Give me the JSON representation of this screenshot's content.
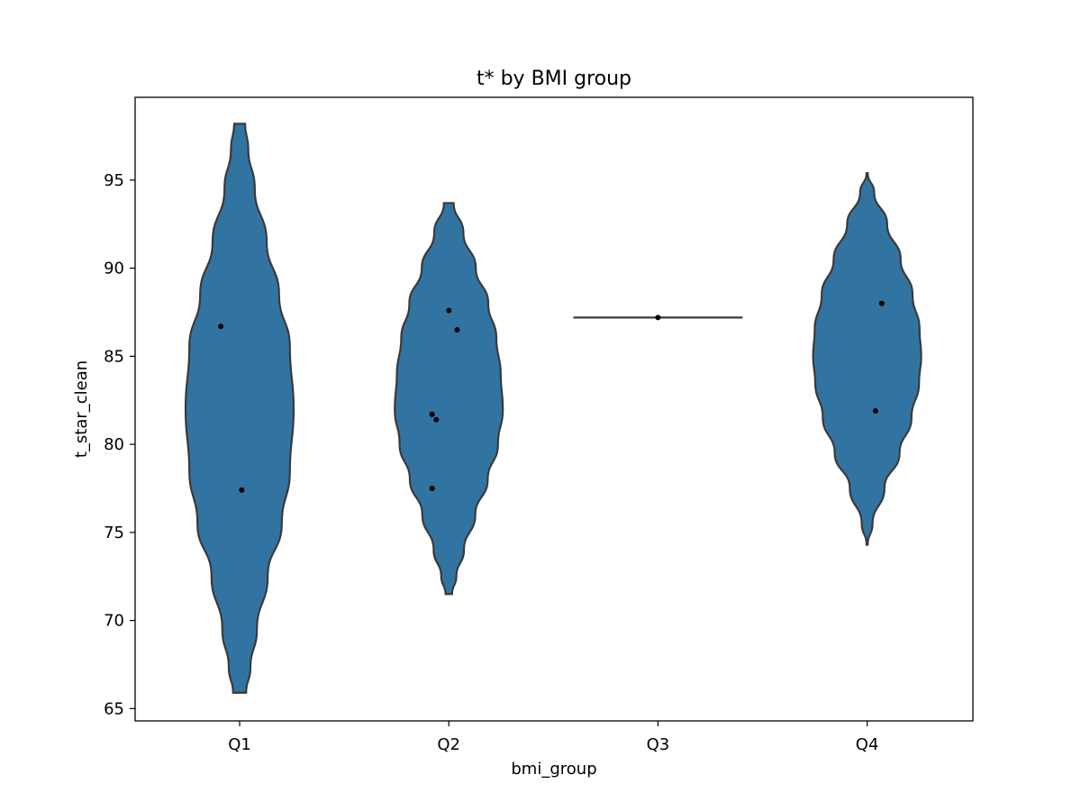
{
  "chart_data": {
    "type": "violin",
    "title": "t* by BMI group",
    "xlabel": "bmi_group",
    "ylabel": "t_star_clean",
    "categories": [
      "Q1",
      "Q2",
      "Q3",
      "Q4"
    ],
    "ylim": [
      64.3,
      99.7
    ],
    "yticks": [
      65,
      70,
      75,
      80,
      85,
      90,
      95
    ],
    "fill_color": "#3274a1",
    "edge_color": "#3a3a3a",
    "point_color": "#000000",
    "grid": false,
    "violins": [
      {
        "category": "Q1",
        "min": 65.9,
        "max": 98.2,
        "profile": [
          [
            65.9,
            0.12
          ],
          [
            67.3,
            0.2
          ],
          [
            69.5,
            0.32
          ],
          [
            72.5,
            0.52
          ],
          [
            75.5,
            0.78
          ],
          [
            78.5,
            0.93
          ],
          [
            82.0,
            1.0
          ],
          [
            85.5,
            0.93
          ],
          [
            88.5,
            0.73
          ],
          [
            91.5,
            0.5
          ],
          [
            94.5,
            0.28
          ],
          [
            96.8,
            0.16
          ],
          [
            98.2,
            0.1
          ]
        ]
      },
      {
        "category": "Q2",
        "min": 71.5,
        "max": 93.7,
        "profile": [
          [
            71.5,
            0.06
          ],
          [
            72.5,
            0.14
          ],
          [
            74.0,
            0.28
          ],
          [
            76.0,
            0.49
          ],
          [
            78.0,
            0.72
          ],
          [
            80.0,
            0.91
          ],
          [
            82.0,
            1.0
          ],
          [
            84.0,
            0.96
          ],
          [
            86.0,
            0.88
          ],
          [
            88.0,
            0.73
          ],
          [
            90.0,
            0.5
          ],
          [
            92.0,
            0.27
          ],
          [
            93.7,
            0.09
          ]
        ]
      },
      {
        "category": "Q3",
        "min": 87.2,
        "max": 87.2,
        "profile": [
          [
            87.2,
            1.0
          ]
        ]
      },
      {
        "category": "Q4",
        "min": 74.3,
        "max": 95.4,
        "profile": [
          [
            74.3,
            0.01
          ],
          [
            75.5,
            0.1
          ],
          [
            77.5,
            0.32
          ],
          [
            79.5,
            0.6
          ],
          [
            81.5,
            0.82
          ],
          [
            83.5,
            0.96
          ],
          [
            85.0,
            1.0
          ],
          [
            86.5,
            0.97
          ],
          [
            88.5,
            0.84
          ],
          [
            90.5,
            0.62
          ],
          [
            92.5,
            0.37
          ],
          [
            94.3,
            0.13
          ],
          [
            95.4,
            0.01
          ]
        ]
      }
    ],
    "points": [
      {
        "category": "Q1",
        "x": -0.09,
        "y": 86.7
      },
      {
        "category": "Q1",
        "x": 0.01,
        "y": 77.4
      },
      {
        "category": "Q2",
        "x": -0.08,
        "y": 81.7
      },
      {
        "category": "Q2",
        "x": -0.06,
        "y": 81.4
      },
      {
        "category": "Q2",
        "x": 0.0,
        "y": 87.6
      },
      {
        "category": "Q2",
        "x": 0.04,
        "y": 86.5
      },
      {
        "category": "Q2",
        "x": -0.08,
        "y": 77.5
      },
      {
        "category": "Q3",
        "x": 0.0,
        "y": 87.2
      },
      {
        "category": "Q4",
        "x": 0.07,
        "y": 88.0
      },
      {
        "category": "Q4",
        "x": 0.04,
        "y": 81.9
      }
    ]
  }
}
